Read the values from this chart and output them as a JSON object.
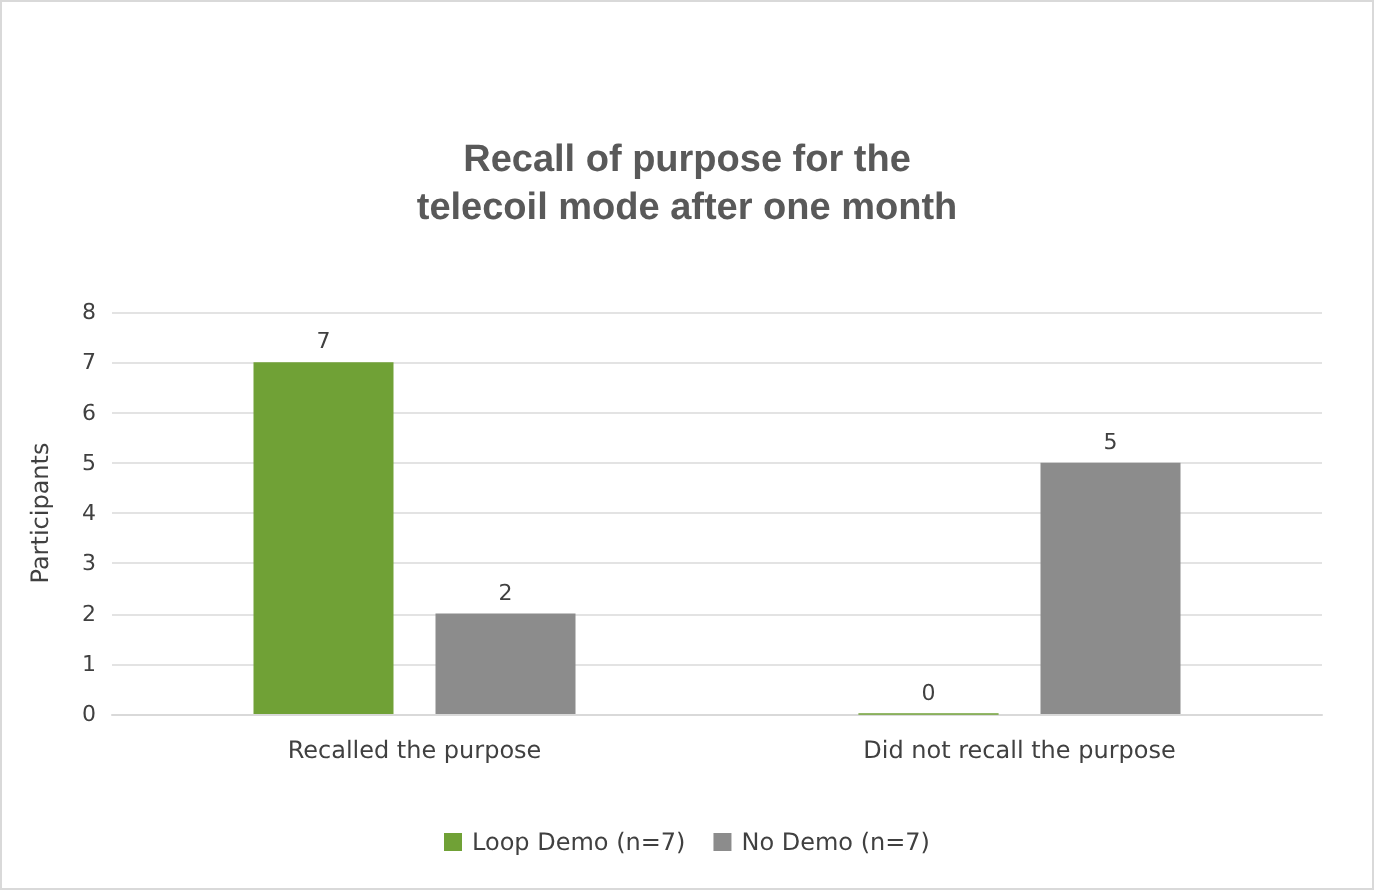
{
  "chart_data": {
    "type": "bar",
    "title": "Recall of purpose for the\ntelecoil mode after one month",
    "ylabel": "Participants",
    "categories": [
      "Recalled the purpose",
      "Did not recall the purpose"
    ],
    "series": [
      {
        "name": "Loop Demo (n=7)",
        "color": "#70a136",
        "values": [
          7,
          0
        ]
      },
      {
        "name": "No Demo (n=7)",
        "color": "#8c8c8c",
        "values": [
          2,
          5
        ]
      }
    ],
    "ylim": [
      0,
      8
    ],
    "yticks": [
      0,
      1,
      2,
      3,
      4,
      5,
      6,
      7,
      8
    ],
    "grid": "y",
    "legend": "bottom",
    "data_labels": true
  }
}
